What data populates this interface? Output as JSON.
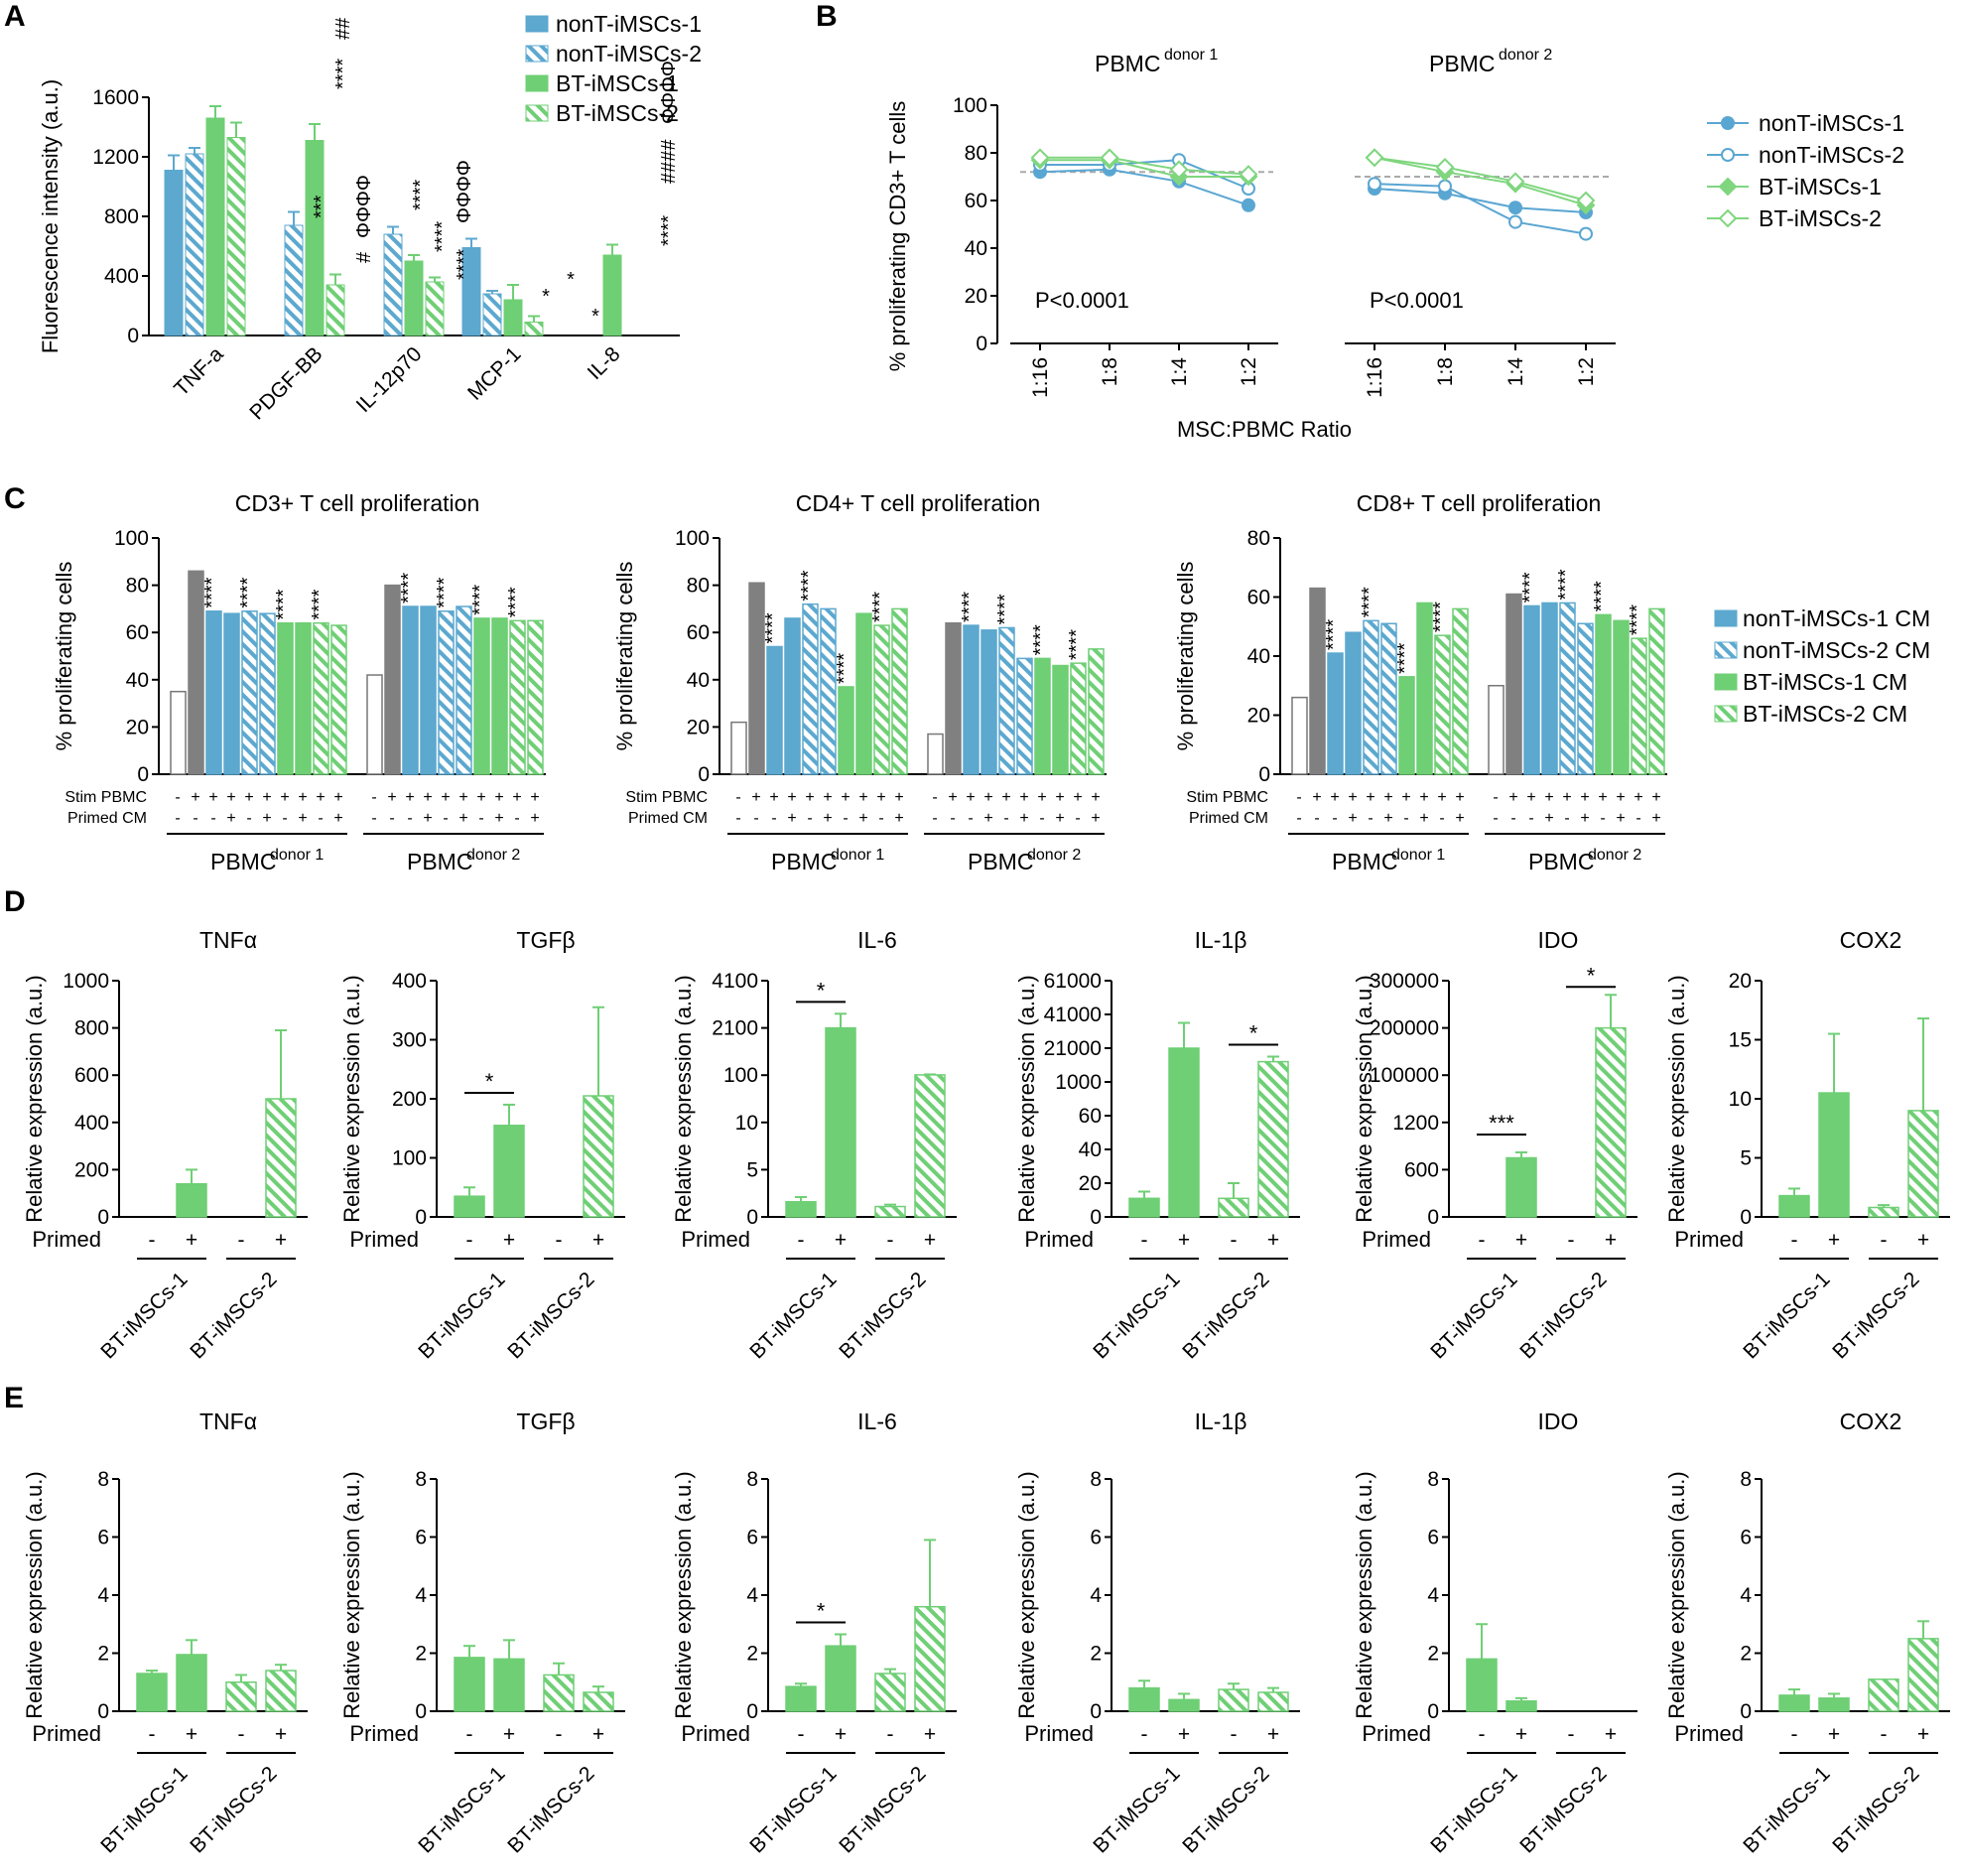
{
  "colors": {
    "blue": "#5ca8cf",
    "green": "#6fcf75",
    "grey": "#808080",
    "green_line": "#7fd67f",
    "blue_line": "#5aa6d2"
  },
  "panel_labels": [
    "A",
    "B",
    "C",
    "D",
    "E"
  ],
  "chart_data": [
    {
      "id": "A",
      "type": "bar",
      "ylabel": "Fluorescence intensity (a.u.)",
      "ylim": [
        0,
        1600
      ],
      "yticks": [
        "0",
        "400",
        "800",
        "1200",
        "1600"
      ],
      "categories": [
        "TNF-a",
        "PDGF-BB",
        "IL-12p70",
        "MCP-1",
        "IL-8"
      ],
      "series": [
        {
          "name": "nonT-iMSCs-1",
          "values": [
            1110,
            0,
            0,
            590,
            0
          ],
          "err": [
            100,
            0,
            0,
            60,
            0
          ]
        },
        {
          "name": "nonT-iMSCs-2",
          "values": [
            1220,
            740,
            680,
            280,
            0
          ],
          "err": [
            40,
            90,
            50,
            20,
            0
          ]
        },
        {
          "name": "BT-iMSCs-1",
          "values": [
            1460,
            1310,
            500,
            240,
            540
          ],
          "err": [
            80,
            110,
            40,
            100,
            70
          ]
        },
        {
          "name": "BT-iMSCs-2",
          "values": [
            1330,
            340,
            360,
            90,
            0
          ],
          "err": [
            100,
            70,
            30,
            40,
            0
          ]
        }
      ],
      "annotations": [
        "***",
        "****",
        "##",
        "#",
        "ΦΦΦΦ",
        "****",
        "****",
        "****",
        "ΦΦΦΦ",
        "*",
        "*",
        "*",
        "****",
        "####",
        "ΦΦΦΦ"
      ]
    },
    {
      "id": "B",
      "type": "line",
      "xlabel": "MSC:PBMC Ratio",
      "ylabel": "% proliferating CD3+ T cells",
      "ylim": [
        0,
        100
      ],
      "yticks": [
        "0",
        "20",
        "40",
        "60",
        "80",
        "100"
      ],
      "groups": [
        "PBMC donor 1",
        "PBMC donor 2"
      ],
      "x": [
        "1:16",
        "1:8",
        "1:4",
        "1:2"
      ],
      "baseline": [
        72,
        70
      ],
      "stats": [
        "P<0.0001",
        "P<0.0001"
      ],
      "series": [
        {
          "name": "nonT-iMSCs-1",
          "donor1": [
            72,
            73,
            68,
            58
          ],
          "donor2": [
            65,
            63,
            57,
            55
          ]
        },
        {
          "name": "nonT-iMSCs-2",
          "donor1": [
            75,
            75,
            77,
            65
          ],
          "donor2": [
            67,
            66,
            51,
            46
          ]
        },
        {
          "name": "BT-iMSCs-1",
          "donor1": [
            77,
            77,
            70,
            70
          ],
          "donor2": [
            78,
            72,
            67,
            58
          ]
        },
        {
          "name": "BT-iMSCs-2",
          "donor1": [
            78,
            78,
            73,
            71
          ],
          "donor2": [
            78,
            74,
            68,
            60
          ]
        }
      ]
    },
    {
      "id": "C",
      "type": "bar",
      "ylabel": "% proliferating cells",
      "legend": [
        "nonT-iMSCs-1 CM",
        "nonT-iMSCs-2 CM",
        "BT-iMSCs-1 CM",
        "BT-iMSCs-2 CM"
      ],
      "row_labels": [
        "Stim PBMC",
        "Primed CM"
      ],
      "stim_row": [
        "-",
        "+",
        "+",
        "+",
        "+",
        "+",
        "+",
        "+",
        "+",
        "+"
      ],
      "primed_row": [
        "-",
        "-",
        "-",
        "+",
        "-",
        "+",
        "-",
        "+",
        "-",
        "+"
      ],
      "donors": [
        "PBMC donor 1",
        "PBMC donor 2"
      ],
      "charts": [
        {
          "title": "CD3+ T cell proliferation",
          "ylim": [
            0,
            100
          ],
          "yticks": [
            "0",
            "20",
            "40",
            "60",
            "80",
            "100"
          ],
          "donor1": [
            35,
            86,
            69,
            68,
            69,
            68,
            64,
            64,
            64,
            63
          ],
          "donor2": [
            42,
            80,
            71,
            71,
            69,
            71,
            66,
            66,
            65,
            65
          ]
        },
        {
          "title": "CD4+ T cell proliferation",
          "ylim": [
            0,
            100
          ],
          "yticks": [
            "0",
            "20",
            "40",
            "60",
            "80",
            "100"
          ],
          "donor1": [
            22,
            81,
            54,
            66,
            72,
            70,
            37,
            68,
            63,
            70
          ],
          "donor2": [
            17,
            64,
            63,
            61,
            62,
            49,
            49,
            46,
            47,
            53
          ]
        },
        {
          "title": "CD8+ T cell proliferation",
          "ylim": [
            0,
            80
          ],
          "yticks": [
            "0",
            "20",
            "40",
            "60",
            "80"
          ],
          "donor1": [
            26,
            63,
            41,
            48,
            52,
            51,
            33,
            58,
            47,
            56
          ],
          "donor2": [
            30,
            61,
            57,
            58,
            58,
            51,
            54,
            52,
            46,
            56
          ]
        }
      ]
    },
    {
      "id": "D",
      "type": "bar",
      "ylabel": "Relative expression (a.u.)",
      "xrow_label": "Primed",
      "primed": [
        "-",
        "+",
        "-",
        "+"
      ],
      "groups": [
        "BT-iMSCs-1",
        "BT-iMSCs-2"
      ],
      "charts": [
        {
          "title": "TNFα",
          "yticks": [
            "0",
            "200",
            "400",
            "600",
            "800",
            "1000"
          ],
          "values": [
            0,
            140,
            0,
            500
          ],
          "err": [
            0,
            60,
            0,
            290
          ],
          "sig": []
        },
        {
          "title": "TGFβ",
          "yticks": [
            "0",
            "100",
            "200",
            "300",
            "400"
          ],
          "values": [
            35,
            155,
            0,
            205
          ],
          "err": [
            15,
            35,
            0,
            150
          ],
          "sig": [
            "*"
          ]
        },
        {
          "title": "IL-6",
          "yticks": [
            "0",
            "5",
            "10",
            "100",
            "2100",
            "4100"
          ],
          "values": [
            1.6,
            2100,
            1.1,
            112
          ],
          "err": [
            0.5,
            600,
            0.2,
            20
          ],
          "sig": [
            "*"
          ]
        },
        {
          "title": "IL-1β",
          "yticks": [
            "0",
            "20",
            "40",
            "60",
            "1000",
            "21000",
            "41000",
            "61000"
          ],
          "values": [
            11,
            21000,
            11,
            13000
          ],
          "err": [
            4,
            15000,
            9,
            3000
          ],
          "sig": [
            "*"
          ]
        },
        {
          "title": "IDO",
          "yticks": [
            "0",
            "600",
            "1200",
            "100000",
            "200000",
            "300000"
          ],
          "values": [
            0,
            750,
            0,
            200000
          ],
          "err": [
            0,
            70,
            0,
            70000
          ],
          "sig": [
            "***",
            "*"
          ]
        },
        {
          "title": "COX2",
          "yticks": [
            "0",
            "5",
            "10",
            "15",
            "20"
          ],
          "values": [
            1.8,
            10.5,
            0.8,
            9
          ],
          "err": [
            0.6,
            5,
            0.2,
            7.8
          ],
          "sig": []
        }
      ]
    },
    {
      "id": "E",
      "type": "bar",
      "ylabel": "Relative expression (a.u.)",
      "xrow_label": "Primed",
      "primed": [
        "-",
        "+",
        "-",
        "+"
      ],
      "groups": [
        "BT-iMSCs-1",
        "BT-iMSCs-2"
      ],
      "ylim": [
        0,
        8
      ],
      "yticks": [
        "0",
        "2",
        "4",
        "6",
        "8"
      ],
      "charts": [
        {
          "title": "TNFα",
          "values": [
            1.3,
            1.95,
            1.0,
            1.4
          ],
          "err": [
            0.1,
            0.5,
            0.25,
            0.2
          ],
          "sig": []
        },
        {
          "title": "TGFβ",
          "values": [
            1.85,
            1.8,
            1.25,
            0.65
          ],
          "err": [
            0.4,
            0.65,
            0.4,
            0.2
          ],
          "sig": []
        },
        {
          "title": "IL-6",
          "values": [
            0.85,
            2.25,
            1.3,
            3.6
          ],
          "err": [
            0.1,
            0.4,
            0.15,
            2.3
          ],
          "sig": [
            "*"
          ]
        },
        {
          "title": "IL-1β",
          "values": [
            0.8,
            0.4,
            0.75,
            0.65
          ],
          "err": [
            0.25,
            0.2,
            0.2,
            0.15
          ],
          "sig": []
        },
        {
          "title": "IDO",
          "values": [
            1.8,
            0.35,
            0,
            0
          ],
          "err": [
            1.2,
            0.1,
            0,
            0
          ],
          "sig": []
        },
        {
          "title": "COX2",
          "values": [
            0.55,
            0.45,
            1.1,
            2.5
          ],
          "err": [
            0.2,
            0.15,
            0,
            0.6
          ],
          "sig": []
        }
      ]
    }
  ]
}
